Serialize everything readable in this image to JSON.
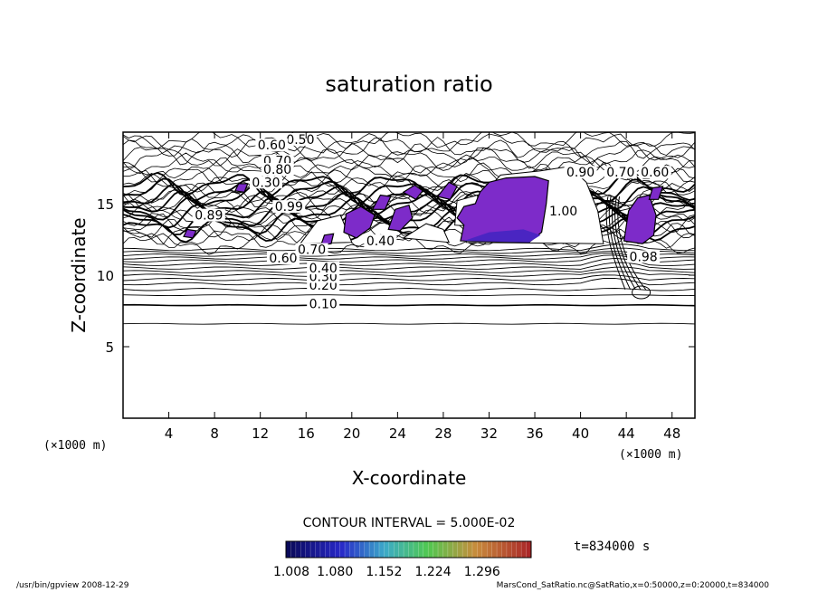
{
  "chart_data": {
    "type": "contour",
    "title": "saturation ratio",
    "xlabel": "X-coordinate",
    "ylabel": "Z-coordinate",
    "x_unit_label": "(×1000 m)",
    "x_ticks": [
      4,
      8,
      12,
      16,
      20,
      24,
      28,
      32,
      36,
      40,
      44,
      48
    ],
    "y_ticks": [
      5,
      10,
      15
    ],
    "xlim": [
      0,
      50
    ],
    "ylim": [
      0,
      20
    ],
    "contour_interval_label": "CONTOUR INTERVAL = 5.000E-02",
    "contour_labels": [
      {
        "text": "0.10",
        "x": 17.5,
        "z": 8.0
      },
      {
        "text": "0.20",
        "x": 17.5,
        "z": 9.3
      },
      {
        "text": "0.30",
        "x": 17.5,
        "z": 9.9
      },
      {
        "text": "0.40",
        "x": 17.5,
        "z": 10.5
      },
      {
        "text": "0.60",
        "x": 14.0,
        "z": 11.2
      },
      {
        "text": "0.70",
        "x": 16.5,
        "z": 11.8
      },
      {
        "text": "0.40",
        "x": 22.5,
        "z": 12.4
      },
      {
        "text": "0.50",
        "x": 15.5,
        "z": 19.5
      },
      {
        "text": "0.60",
        "x": 13.0,
        "z": 19.1
      },
      {
        "text": "0.70",
        "x": 13.5,
        "z": 18.0
      },
      {
        "text": "0.80",
        "x": 13.5,
        "z": 17.4
      },
      {
        "text": "0.90",
        "x": 40.0,
        "z": 17.2
      },
      {
        "text": "0.70",
        "x": 43.5,
        "z": 17.2
      },
      {
        "text": "0.60",
        "x": 46.5,
        "z": 17.2
      },
      {
        "text": "0.30",
        "x": 12.5,
        "z": 16.5
      },
      {
        "text": "0.89",
        "x": 7.5,
        "z": 14.2
      },
      {
        "text": "0.99",
        "x": 14.5,
        "z": 14.8
      },
      {
        "text": "1.00",
        "x": 38.5,
        "z": 14.5
      },
      {
        "text": "0.98",
        "x": 45.5,
        "z": 11.3
      }
    ],
    "colorbar": {
      "tick_labels": [
        "1.008",
        "1.080",
        "1.152",
        "1.224",
        "1.296"
      ],
      "range": [
        1.008,
        1.368
      ]
    },
    "time_label": "t=834000 s"
  },
  "footer": {
    "left": "/usr/bin/gpview   2008-12-29",
    "right": "MarsCond_SatRatio.nc@SatRatio,x=0:50000,z=0:20000,t=834000"
  },
  "colors": {
    "fill": "#7d2bc9",
    "fill_dark": "#4a25c2",
    "line": "#000000"
  }
}
